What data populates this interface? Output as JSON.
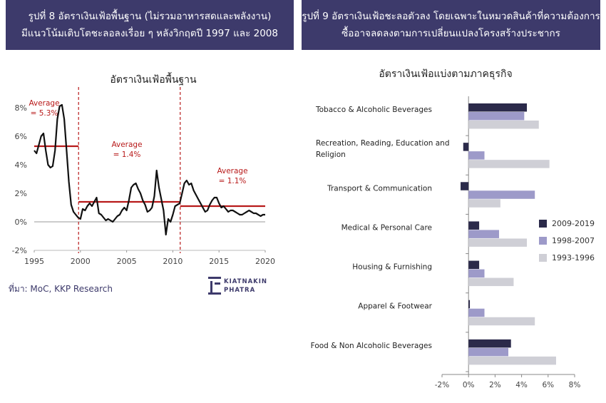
{
  "banner_left": {
    "line1": "รูปที่ 8 อัตราเงินเฟ้อพื้นฐาน (ไม่รวมอาหารสดและพลังงาน)",
    "line2": "มีแนวโน้มเติบโตชะลอลงเรื่อย ๆ หลังวิกฤตปี 1997 และ 2008"
  },
  "banner_right": {
    "line1": "รูปที่ 9 อัตราเงินเฟ้อชะลอตัวลง โดยเฉพาะในหมวดสินค้าที่ความต้องการ",
    "line2": "ซื้ออาจลดลงตามการเปลี่ยนแปลงโครงสร้างประชากร"
  },
  "source": "ที่มา: MoC, KKP Research",
  "logo": {
    "line1": "KIATNAKIN",
    "line2": "PHATRA"
  },
  "colors": {
    "banner": "#3d3a6b",
    "series_2009_2019": "#2b2a4a",
    "series_1998_2007": "#9d9ac9",
    "series_1993_1996": "#cfcfd6",
    "line": "#111111",
    "average": "#b81a1a",
    "divider": "#b81a1a"
  },
  "chart_data": [
    {
      "type": "line",
      "title": "อัตราเงินเฟ้อพื้นฐาน",
      "xlim": [
        1995,
        2020
      ],
      "ylim": [
        -2,
        9
      ],
      "x_ticks": [
        "1995",
        "2000",
        "2005",
        "2010",
        "2015",
        "2020"
      ],
      "y_ticks": [
        "8%",
        "6%",
        "4%",
        "2%",
        "0%",
        "-2%"
      ],
      "series": [
        {
          "points": [
            [
              1995.0,
              5.0
            ],
            [
              1995.25,
              4.8
            ],
            [
              1995.5,
              5.4
            ],
            [
              1995.75,
              6.0
            ],
            [
              1996.0,
              6.2
            ],
            [
              1996.25,
              5.0
            ],
            [
              1996.5,
              4.0
            ],
            [
              1996.75,
              3.8
            ],
            [
              1997.0,
              3.9
            ],
            [
              1997.25,
              5.0
            ],
            [
              1997.5,
              7.2
            ],
            [
              1997.75,
              8.1
            ],
            [
              1998.0,
              8.2
            ],
            [
              1998.25,
              7.2
            ],
            [
              1998.5,
              5.0
            ],
            [
              1998.75,
              2.8
            ],
            [
              1999.0,
              1.2
            ],
            [
              1999.25,
              0.7
            ],
            [
              1999.5,
              0.5
            ],
            [
              1999.75,
              0.3
            ],
            [
              2000.0,
              0.2
            ],
            [
              2000.25,
              0.9
            ],
            [
              2000.5,
              0.8
            ],
            [
              2000.75,
              1.1
            ],
            [
              2001.0,
              1.3
            ],
            [
              2001.25,
              1.1
            ],
            [
              2001.5,
              1.4
            ],
            [
              2001.75,
              1.7
            ],
            [
              2002.0,
              0.6
            ],
            [
              2002.25,
              0.5
            ],
            [
              2002.5,
              0.3
            ],
            [
              2002.75,
              0.1
            ],
            [
              2003.0,
              0.2
            ],
            [
              2003.25,
              0.1
            ],
            [
              2003.5,
              0.0
            ],
            [
              2003.75,
              0.2
            ],
            [
              2004.0,
              0.4
            ],
            [
              2004.25,
              0.5
            ],
            [
              2004.5,
              0.8
            ],
            [
              2004.75,
              1.0
            ],
            [
              2005.0,
              0.8
            ],
            [
              2005.25,
              1.5
            ],
            [
              2005.5,
              2.4
            ],
            [
              2005.75,
              2.6
            ],
            [
              2006.0,
              2.7
            ],
            [
              2006.25,
              2.3
            ],
            [
              2006.5,
              2.0
            ],
            [
              2006.75,
              1.5
            ],
            [
              2007.0,
              1.2
            ],
            [
              2007.25,
              0.7
            ],
            [
              2007.5,
              0.8
            ],
            [
              2007.75,
              1.0
            ],
            [
              2008.0,
              1.8
            ],
            [
              2008.25,
              3.6
            ],
            [
              2008.5,
              2.4
            ],
            [
              2008.75,
              1.6
            ],
            [
              2009.0,
              0.8
            ],
            [
              2009.25,
              -0.9
            ],
            [
              2009.5,
              0.2
            ],
            [
              2009.75,
              0.0
            ],
            [
              2010.0,
              0.5
            ],
            [
              2010.25,
              1.1
            ],
            [
              2010.5,
              1.2
            ],
            [
              2010.75,
              1.3
            ],
            [
              2011.0,
              2.0
            ],
            [
              2011.25,
              2.7
            ],
            [
              2011.5,
              2.9
            ],
            [
              2011.75,
              2.6
            ],
            [
              2012.0,
              2.7
            ],
            [
              2012.25,
              2.2
            ],
            [
              2012.5,
              1.9
            ],
            [
              2012.75,
              1.6
            ],
            [
              2013.0,
              1.3
            ],
            [
              2013.25,
              1.0
            ],
            [
              2013.5,
              0.7
            ],
            [
              2013.75,
              0.8
            ],
            [
              2014.0,
              1.2
            ],
            [
              2014.25,
              1.5
            ],
            [
              2014.5,
              1.7
            ],
            [
              2014.75,
              1.7
            ],
            [
              2015.0,
              1.3
            ],
            [
              2015.25,
              1.0
            ],
            [
              2015.5,
              1.1
            ],
            [
              2015.75,
              0.9
            ],
            [
              2016.0,
              0.7
            ],
            [
              2016.25,
              0.8
            ],
            [
              2016.5,
              0.8
            ],
            [
              2016.75,
              0.7
            ],
            [
              2017.0,
              0.6
            ],
            [
              2017.25,
              0.5
            ],
            [
              2017.5,
              0.5
            ],
            [
              2017.75,
              0.6
            ],
            [
              2018.0,
              0.7
            ],
            [
              2018.25,
              0.8
            ],
            [
              2018.5,
              0.7
            ],
            [
              2018.75,
              0.6
            ],
            [
              2019.0,
              0.6
            ],
            [
              2019.25,
              0.5
            ],
            [
              2019.5,
              0.4
            ],
            [
              2019.75,
              0.5
            ],
            [
              2020.0,
              0.5
            ]
          ]
        }
      ],
      "averages": [
        {
          "from": 1995,
          "to": 1999.8,
          "value": 5.3,
          "label_1": "Average",
          "label_2": "= 5.3%"
        },
        {
          "from": 1999.8,
          "to": 2010.8,
          "value": 1.4,
          "label_1": "Average",
          "label_2": "= 1.4%"
        },
        {
          "from": 2010.8,
          "to": 2020,
          "value": 1.1,
          "label_1": "Average",
          "label_2": "= 1.1%"
        }
      ],
      "dividers": [
        1999.8,
        2010.8
      ]
    },
    {
      "type": "bar",
      "orientation": "horizontal",
      "title": "อัตราเงินเฟ้อแบ่งตามภาคธุรกิจ",
      "xlim": [
        -2,
        8
      ],
      "x_ticks": [
        "-2%",
        "0%",
        "2%",
        "4%",
        "6%",
        "8%"
      ],
      "categories": [
        "Tobacco & Alcoholic Beverages",
        "Recreation, Reading, Education and Religion",
        "Transport & Communication",
        "Medical & Personal Care",
        "Housing & Furnishing",
        "Apparel & Footwear",
        "Food & Non Alcoholic Beverages"
      ],
      "category_lines": [
        [
          "Tobacco & Alcoholic Beverages"
        ],
        [
          "Recreation, Reading, Education and",
          "Religion"
        ],
        [
          "Transport & Communication"
        ],
        [
          "Medical & Personal Care"
        ],
        [
          "Housing & Furnishing"
        ],
        [
          "Apparel & Footwear"
        ],
        [
          "Food & Non Alcoholic Beverages"
        ]
      ],
      "series": [
        {
          "name": "2009-2019",
          "values": [
            4.4,
            -0.4,
            -0.6,
            0.8,
            0.8,
            0.1,
            3.2
          ]
        },
        {
          "name": "1998-2007",
          "values": [
            4.2,
            1.2,
            5.0,
            2.3,
            1.2,
            1.2,
            3.0
          ]
        },
        {
          "name": "1993-1996",
          "values": [
            5.3,
            6.1,
            2.4,
            4.4,
            3.4,
            5.0,
            6.6
          ]
        }
      ],
      "legend_position": "right"
    }
  ]
}
